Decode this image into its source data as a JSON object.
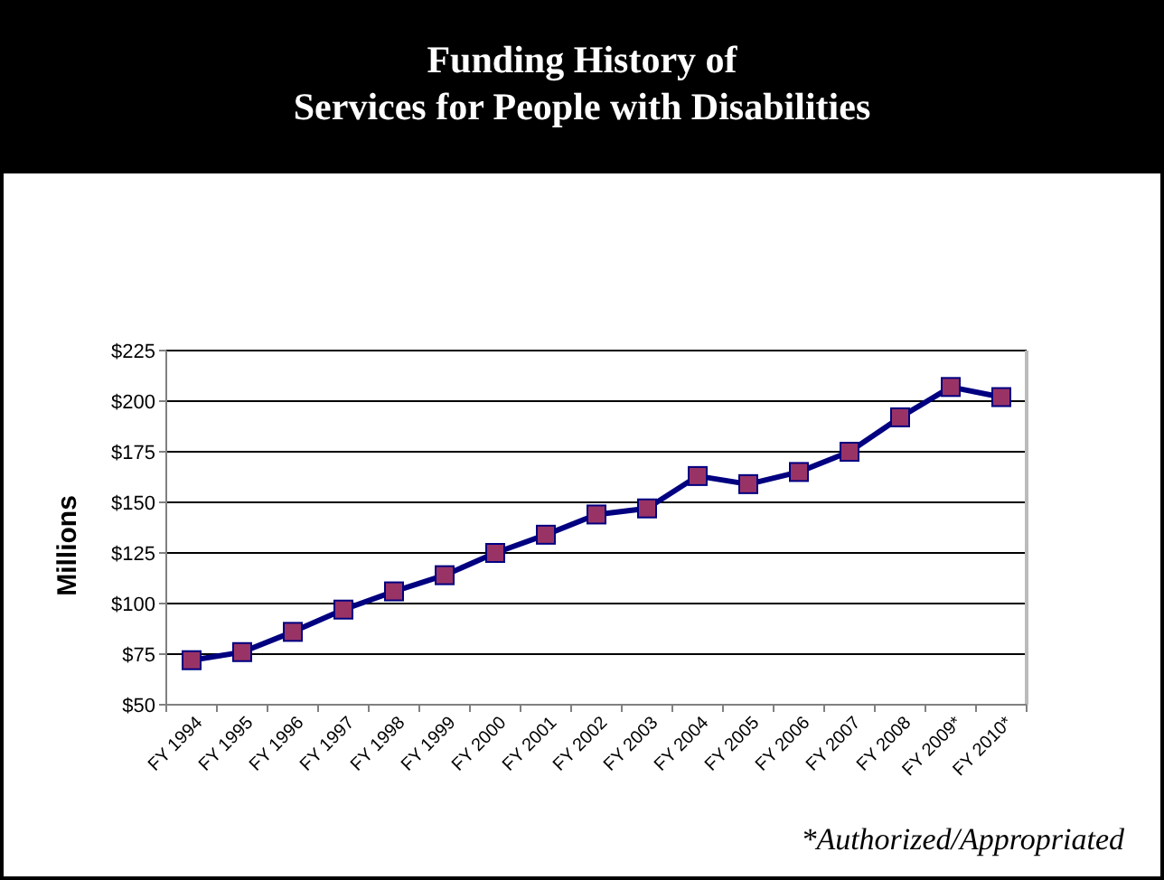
{
  "chart_data": {
    "type": "line",
    "title": "Funding History of\nServices for People with Disabilities",
    "ylabel": "Millions",
    "categories": [
      "FY 1994",
      "FY 1995",
      "FY 1996",
      "FY 1997",
      "FY 1998",
      "FY 1999",
      "FY 2000",
      "FY 2001",
      "FY 2002",
      "FY 2003",
      "FY 2004",
      "FY 2005",
      "FY 2006",
      "FY 2007",
      "FY 2008",
      "FY 2009*",
      "FY 2010*"
    ],
    "series": [
      {
        "color": "#000080",
        "values": [
          72,
          76,
          86,
          97,
          106,
          114,
          125,
          134,
          144,
          147,
          163,
          159,
          165,
          175,
          192,
          207,
          202
        ]
      }
    ],
    "ylim": [
      50,
      225
    ],
    "yticks": [
      {
        "value": 50,
        "label": "$50"
      },
      {
        "value": 75,
        "label": "$75"
      },
      {
        "value": 100,
        "label": "$100"
      },
      {
        "value": 125,
        "label": "$125"
      },
      {
        "value": 150,
        "label": "$150"
      },
      {
        "value": 175,
        "label": "$175"
      },
      {
        "value": 200,
        "label": "$200"
      },
      {
        "value": 225,
        "label": "$225"
      }
    ],
    "grid": "y",
    "marker": "square",
    "line_style": "solid",
    "annotations": [
      "*Authorized/Appropriated"
    ]
  }
}
